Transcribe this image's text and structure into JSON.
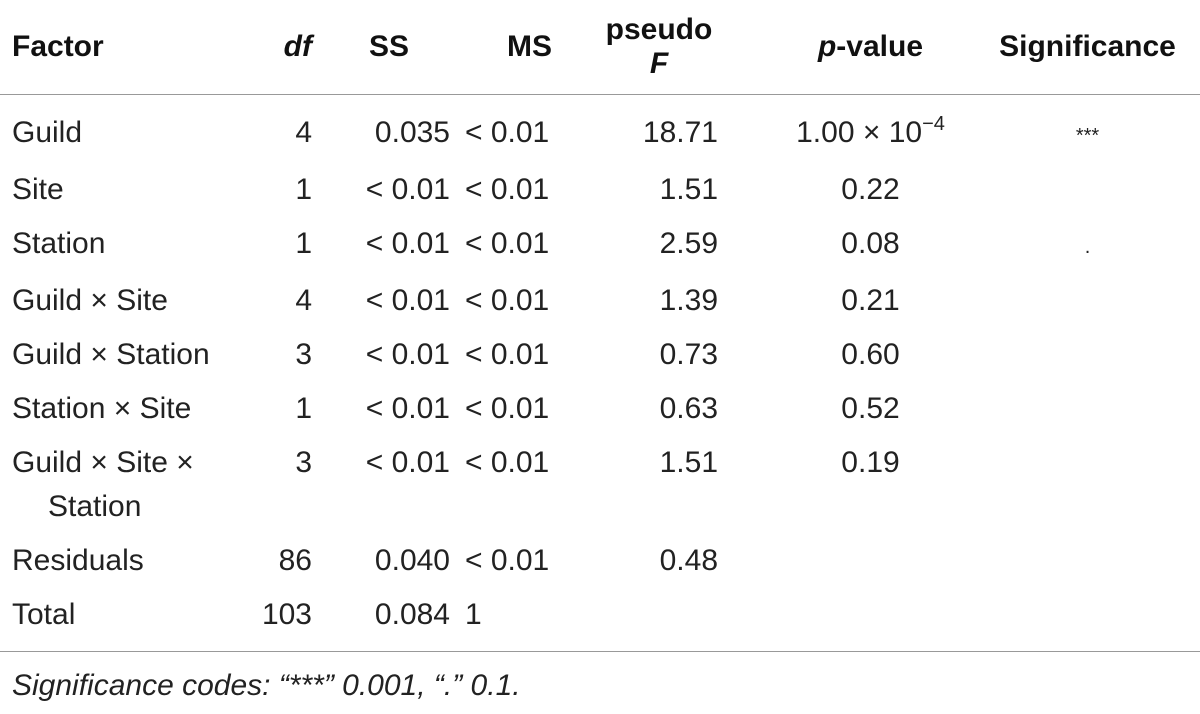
{
  "table": {
    "header": [
      "Factor",
      "df",
      "SS",
      "MS",
      [
        "pseudo ",
        "F"
      ],
      [
        "p",
        "-value"
      ],
      "Significance"
    ],
    "rows": [
      [
        "Guild",
        "4",
        "0.035",
        "< 0.01",
        "18.71",
        {
          "base": "1.00 × 10",
          "exp": "−4"
        },
        "***"
      ],
      [
        "Site",
        "1",
        "< 0.01",
        "< 0.01",
        "1.51",
        "0.22",
        null
      ],
      [
        "Station",
        "1",
        "< 0.01",
        "< 0.01",
        "2.59",
        "0.08",
        "."
      ],
      [
        "Guild × Site",
        "4",
        "< 0.01",
        "< 0.01",
        "1.39",
        "0.21",
        null
      ],
      [
        "Guild × Station",
        "3",
        "< 0.01",
        "< 0.01",
        "0.73",
        "0.60",
        null
      ],
      [
        "Station × Site",
        "1",
        "< 0.01",
        "< 0.01",
        "0.63",
        "0.52",
        null
      ],
      [
        "Guild × Site × Station",
        "3",
        "< 0.01",
        "< 0.01",
        "1.51",
        "0.19",
        null
      ],
      [
        "Residuals",
        "86",
        "0.040",
        "< 0.01",
        "0.48",
        null,
        null
      ],
      [
        "Total",
        "103",
        "0.084",
        "1",
        null,
        null,
        null
      ]
    ],
    "footnote": "Significance codes: “***” 0.001, “.” 0.1."
  }
}
